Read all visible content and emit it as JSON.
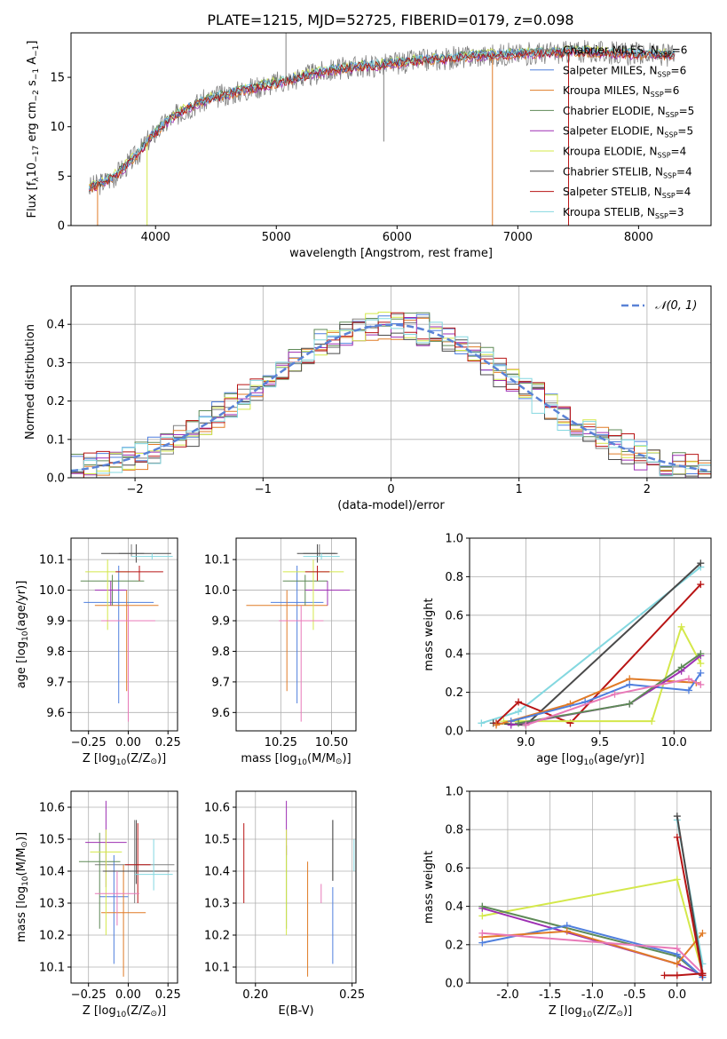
{
  "figure_title": "PLATE=1215, MJD=52725, FIBERID=0179, z=0.098",
  "series": [
    {
      "name": "Chabrier MILES",
      "nssp": "6",
      "color": "#808080"
    },
    {
      "name": "Salpeter MILES",
      "nssp": "6",
      "color": "#4f7fde"
    },
    {
      "name": "Kroupa MILES",
      "nssp": "6",
      "color": "#e07b27"
    },
    {
      "name": "Chabrier ELODIE",
      "nssp": "5",
      "color": "#5e8a57"
    },
    {
      "name": "Salpeter ELODIE",
      "nssp": "5",
      "color": "#9d2fb3"
    },
    {
      "name": "Kroupa ELODIE",
      "nssp": "4",
      "color": "#d4e84a"
    },
    {
      "name": "Chabrier STELIB",
      "nssp": "4",
      "color": "#4a4a4a"
    },
    {
      "name": "Salpeter STELIB",
      "nssp": "4",
      "color": "#b81414"
    },
    {
      "name": "Kroupa STELIB",
      "nssp": "3",
      "color": "#84d8e0"
    }
  ],
  "pink_color": "#e879b8",
  "chart_data": [
    {
      "id": "spectrum",
      "type": "line",
      "title": "PLATE=1215, MJD=52725, FIBERID=0179, z=0.098",
      "xlabel": "wavelength [Angstrom, rest frame]",
      "ylabel_parts": [
        "Flux [f",
        "λ",
        "10",
        "−17",
        " erg cm",
        "−2",
        " s",
        "−1",
        " A",
        "−1",
        "]"
      ],
      "xlim": [
        3300,
        8600
      ],
      "ylim": [
        0,
        19.5
      ],
      "xticks": [
        4000,
        5000,
        6000,
        7000,
        8000
      ],
      "yticks": [
        0,
        5,
        10,
        15
      ],
      "continuum": {
        "x": [
          3450,
          3550,
          3650,
          3750,
          3850,
          3950,
          4050,
          4150,
          4250,
          4350,
          4500,
          4700,
          4900,
          5100,
          5300,
          5500,
          5700,
          5900,
          6100,
          6300,
          6500,
          6700,
          6900,
          7100,
          7300,
          7500,
          7700,
          7900,
          8100,
          8300
        ],
        "y": [
          3.8,
          4.3,
          4.9,
          6.0,
          7.2,
          8.8,
          10.0,
          11.0,
          11.8,
          12.4,
          13.0,
          13.6,
          14.2,
          14.7,
          15.3,
          15.8,
          16.1,
          16.3,
          16.6,
          16.8,
          17.0,
          17.2,
          17.3,
          17.4,
          17.5,
          17.6,
          17.5,
          17.4,
          17.3,
          17.2
        ]
      },
      "spikes": [
        {
          "x": 3520,
          "y0": 0,
          "y1": 4.5,
          "color": "#e07b27"
        },
        {
          "x": 3930,
          "y0": 0,
          "y1": 8.5,
          "color": "#d4e84a"
        },
        {
          "x": 6790,
          "y0": 0,
          "y1": 16.8,
          "color": "#e07b27"
        },
        {
          "x": 7420,
          "y0": 0,
          "y1": 17.5,
          "color": "#b81414"
        },
        {
          "x": 5080,
          "y0": 14.4,
          "y1": 19.5,
          "color": "#808080"
        },
        {
          "x": 5890,
          "y0": 8.5,
          "y1": 16.0,
          "color": "#808080"
        }
      ]
    },
    {
      "id": "residuals",
      "type": "step-histogram",
      "xlabel": "(data-model)/error",
      "ylabel": "Normed distribution",
      "xlim": [
        -2.5,
        2.5
      ],
      "ylim": [
        0,
        0.5
      ],
      "xticks": [
        -2,
        -1,
        0,
        1,
        2
      ],
      "yticks": [
        0.0,
        0.1,
        0.2,
        0.3,
        0.4
      ],
      "bin_width": 0.1,
      "legend_label": "𝒩(0, 1)",
      "legend_color": "#5a82d6",
      "hist_offsets": [
        0.0,
        0.02,
        -0.015,
        0.03,
        -0.025,
        0.015,
        -0.02,
        0.025,
        -0.01
      ]
    },
    {
      "id": "age_vs_Z",
      "type": "errorbar",
      "xlabel_parts": [
        "Z [log",
        "10",
        "(Z/Z",
        "⊙",
        ")]"
      ],
      "ylabel_parts": [
        "age  [log",
        "10",
        "(age/yr)]"
      ],
      "xlim": [
        -0.36,
        0.31
      ],
      "ylim": [
        9.54,
        10.17
      ],
      "xticks": [
        -0.25,
        0.0,
        0.25
      ],
      "yticks": [
        9.6,
        9.7,
        9.8,
        9.9,
        10.0,
        10.1
      ],
      "points": [
        {
          "c": 0,
          "x": 0.02,
          "y": 10.12,
          "xerr": 0.08,
          "yerr": [
            0.01,
            0.03
          ]
        },
        {
          "c": 1,
          "x": -0.06,
          "y": 9.96,
          "xerr": 0.22,
          "yerr": [
            0.33,
            0.12
          ]
        },
        {
          "c": 2,
          "x": -0.01,
          "y": 9.95,
          "xerr": 0.2,
          "yerr": [
            0.28,
            0.05
          ]
        },
        {
          "c": 3,
          "x": -0.1,
          "y": 10.03,
          "xerr": 0.2,
          "yerr": [
            0.08,
            0.02
          ]
        },
        {
          "c": 4,
          "x": -0.11,
          "y": 10.0,
          "xerr": 0.1,
          "yerr": [
            0.05,
            0.03
          ]
        },
        {
          "c": 5,
          "x": -0.13,
          "y": 10.06,
          "xerr": 0.14,
          "yerr": [
            0.19,
            0.04
          ]
        },
        {
          "c": 6,
          "x": 0.05,
          "y": 10.12,
          "xerr": 0.22,
          "yerr": [
            0.03,
            0.03
          ]
        },
        {
          "c": 7,
          "x": 0.07,
          "y": 10.06,
          "xerr": 0.15,
          "yerr": [
            0.03,
            0.02
          ]
        },
        {
          "c": 8,
          "x": 0.15,
          "y": 10.11,
          "xerr": 0.13,
          "yerr": [
            0.01,
            0.01
          ]
        },
        {
          "c": -1,
          "x": 0.0,
          "y": 9.9,
          "xerr": 0.17,
          "yerr": [
            0.33,
            0.05
          ]
        }
      ]
    },
    {
      "id": "age_vs_mass",
      "type": "errorbar",
      "xlabel_parts": [
        "mass [log",
        "10",
        "(M/M",
        "⊙",
        ")]"
      ],
      "xlim": [
        10.03,
        10.62
      ],
      "ylim": [
        9.54,
        10.17
      ],
      "xticks": [
        10.25,
        10.5
      ],
      "yticks": [
        9.6,
        9.7,
        9.8,
        9.9,
        10.0,
        10.1
      ],
      "points": [
        {
          "c": 0,
          "x": 10.44,
          "y": 10.12,
          "xerr": 0.08,
          "yerr": [
            0.01,
            0.03
          ]
        },
        {
          "c": 1,
          "x": 10.33,
          "y": 9.96,
          "xerr": 0.13,
          "yerr": [
            0.33,
            0.12
          ]
        },
        {
          "c": 2,
          "x": 10.28,
          "y": 9.95,
          "xerr": 0.2,
          "yerr": [
            0.28,
            0.05
          ]
        },
        {
          "c": 3,
          "x": 10.37,
          "y": 10.03,
          "xerr": 0.11,
          "yerr": [
            0.08,
            0.02
          ]
        },
        {
          "c": 4,
          "x": 10.48,
          "y": 10.0,
          "xerr": 0.11,
          "yerr": [
            0.05,
            0.03
          ]
        },
        {
          "c": 5,
          "x": 10.41,
          "y": 10.06,
          "xerr": 0.15,
          "yerr": [
            0.19,
            0.04
          ]
        },
        {
          "c": 6,
          "x": 10.43,
          "y": 10.12,
          "xerr": 0.1,
          "yerr": [
            0.03,
            0.03
          ]
        },
        {
          "c": 7,
          "x": 10.43,
          "y": 10.06,
          "xerr": 0.06,
          "yerr": [
            0.03,
            0.02
          ]
        },
        {
          "c": 8,
          "x": 10.45,
          "y": 10.11,
          "xerr": 0.09,
          "yerr": [
            0.01,
            0.01
          ]
        },
        {
          "c": -1,
          "x": 10.35,
          "y": 9.9,
          "xerr": 0.11,
          "yerr": [
            0.33,
            0.05
          ]
        }
      ]
    },
    {
      "id": "weight_vs_age",
      "type": "line",
      "xlabel_parts": [
        "age  [log",
        "10",
        "(age/yr)]"
      ],
      "ylabel": "mass weight",
      "xlim": [
        8.62,
        10.25
      ],
      "ylim": [
        0,
        1.0
      ],
      "xticks": [
        9.0,
        9.5,
        10.0
      ],
      "yticks": [
        0.0,
        0.2,
        0.4,
        0.6,
        0.8,
        1.0
      ],
      "series": [
        {
          "c": 8,
          "x": [
            8.7,
            8.95,
            10.18
          ],
          "y": [
            0.04,
            0.1,
            0.85
          ]
        },
        {
          "c": 6,
          "x": [
            8.78,
            9.0,
            10.18
          ],
          "y": [
            0.04,
            0.03,
            0.87
          ]
        },
        {
          "c": 7,
          "x": [
            8.8,
            8.95,
            9.3,
            10.18
          ],
          "y": [
            0.04,
            0.15,
            0.04,
            0.76
          ]
        },
        {
          "c": 5,
          "x": [
            8.85,
            9.85,
            10.05,
            10.18
          ],
          "y": [
            0.05,
            0.05,
            0.54,
            0.35
          ]
        },
        {
          "c": 2,
          "x": [
            8.8,
            9.3,
            9.7,
            10.15
          ],
          "y": [
            0.03,
            0.14,
            0.27,
            0.25
          ]
        },
        {
          "c": 1,
          "x": [
            8.9,
            9.4,
            9.7,
            10.1,
            10.18
          ],
          "y": [
            0.05,
            0.15,
            0.24,
            0.21,
            0.3
          ]
        },
        {
          "c": 4,
          "x": [
            8.9,
            9.7,
            10.05,
            10.18
          ],
          "y": [
            0.03,
            0.14,
            0.31,
            0.39
          ]
        },
        {
          "c": 3,
          "x": [
            8.95,
            9.7,
            10.05,
            10.18
          ],
          "y": [
            0.04,
            0.14,
            0.33,
            0.4
          ]
        },
        {
          "c": -1,
          "x": [
            9.0,
            9.6,
            10.1,
            10.18
          ],
          "y": [
            0.03,
            0.19,
            0.27,
            0.24
          ]
        }
      ]
    },
    {
      "id": "mass_vs_Z",
      "type": "errorbar",
      "xlabel_parts": [
        "Z [log",
        "10",
        "(Z/Z",
        "⊙",
        ")]"
      ],
      "ylabel_parts": [
        "mass [log",
        "10",
        "(M/M",
        "⊙",
        ")]"
      ],
      "xlim": [
        -0.36,
        0.31
      ],
      "ylim": [
        10.05,
        10.65
      ],
      "xticks": [
        -0.25,
        0.0,
        0.25
      ],
      "yticks": [
        10.1,
        10.2,
        10.3,
        10.4,
        10.5,
        10.6
      ],
      "points": [
        {
          "c": 0,
          "x": 0.04,
          "y": 10.42,
          "xerr": 0.25,
          "yerr": [
            0.12,
            0.14
          ]
        },
        {
          "c": 1,
          "x": -0.09,
          "y": 10.32,
          "xerr": 0.09,
          "yerr": [
            0.21,
            0.13
          ]
        },
        {
          "c": 2,
          "x": -0.03,
          "y": 10.27,
          "xerr": 0.14,
          "yerr": [
            0.2,
            0.15
          ]
        },
        {
          "c": 3,
          "x": -0.18,
          "y": 10.43,
          "xerr": 0.13,
          "yerr": [
            0.21,
            0.09
          ]
        },
        {
          "c": 4,
          "x": -0.14,
          "y": 10.49,
          "xerr": 0.13,
          "yerr": [
            0.14,
            0.13
          ]
        },
        {
          "c": 5,
          "x": -0.14,
          "y": 10.46,
          "xerr": 0.1,
          "yerr": [
            0.26,
            0.07
          ]
        },
        {
          "c": 6,
          "x": 0.05,
          "y": 10.4,
          "xerr": 0.21,
          "yerr": [
            0.04,
            0.16
          ]
        },
        {
          "c": 7,
          "x": 0.06,
          "y": 10.42,
          "xerr": 0.08,
          "yerr": [
            0.12,
            0.13
          ]
        },
        {
          "c": 8,
          "x": 0.16,
          "y": 10.39,
          "xerr": 0.12,
          "yerr": [
            0.05,
            0.11
          ]
        },
        {
          "c": -1,
          "x": -0.07,
          "y": 10.33,
          "xerr": 0.14,
          "yerr": [
            0.1,
            0.07
          ]
        }
      ]
    },
    {
      "id": "mass_vs_ebv",
      "type": "errorbar",
      "xlabel": "E(B-V)",
      "xlim": [
        0.19,
        0.252
      ],
      "ylim": [
        10.05,
        10.65
      ],
      "xticks": [
        0.2,
        0.25
      ],
      "yticks": [
        10.1,
        10.2,
        10.3,
        10.4,
        10.5,
        10.6
      ],
      "points": [
        {
          "c": 0,
          "x": 0.24,
          "y": 10.42,
          "xerr": 0,
          "yerr": [
            0.05,
            0.14
          ]
        },
        {
          "c": 1,
          "x": 0.24,
          "y": 10.32,
          "xerr": 0,
          "yerr": [
            0.21,
            0.03
          ]
        },
        {
          "c": 2,
          "x": 0.227,
          "y": 10.27,
          "xerr": 0,
          "yerr": [
            0.2,
            0.16
          ]
        },
        {
          "c": 3,
          "x": 0.216,
          "y": 10.43,
          "xerr": 0,
          "yerr": [
            0.21,
            0.05
          ]
        },
        {
          "c": 4,
          "x": 0.216,
          "y": 10.49,
          "xerr": 0,
          "yerr": [
            0.04,
            0.13
          ]
        },
        {
          "c": 5,
          "x": 0.216,
          "y": 10.46,
          "xerr": 0,
          "yerr": [
            0.26,
            0.07
          ]
        },
        {
          "c": 6,
          "x": 0.24,
          "y": 10.45,
          "xerr": 0,
          "yerr": [
            0.08,
            0.11
          ]
        },
        {
          "c": 7,
          "x": 0.194,
          "y": 10.43,
          "xerr": 0,
          "yerr": [
            0.13,
            0.12
          ]
        },
        {
          "c": 8,
          "x": 0.251,
          "y": 10.45,
          "xerr": 0,
          "yerr": [
            0.05,
            0.05
          ]
        },
        {
          "c": -1,
          "x": 0.234,
          "y": 10.33,
          "xerr": 0,
          "yerr": [
            0.03,
            0.03
          ]
        }
      ]
    },
    {
      "id": "weight_vs_Z",
      "type": "line",
      "xlabel_parts": [
        "Z [log",
        "10",
        "(Z/Z",
        "⊙",
        ")]"
      ],
      "ylabel": "mass weight",
      "xlim": [
        -2.45,
        0.4
      ],
      "ylim": [
        0,
        1.0
      ],
      "xticks": [
        -2.0,
        -1.5,
        -1.0,
        -0.5,
        0.0
      ],
      "yticks": [
        0.0,
        0.2,
        0.4,
        0.6,
        0.8,
        1.0
      ],
      "series": [
        {
          "c": 5,
          "x": [
            -2.3,
            0.0,
            0.3
          ],
          "y": [
            0.35,
            0.54,
            0.05
          ]
        },
        {
          "c": 4,
          "x": [
            -2.3,
            0.0,
            0.3
          ],
          "y": [
            0.39,
            0.1,
            0.04
          ]
        },
        {
          "c": 3,
          "x": [
            -2.3,
            0.0,
            0.3
          ],
          "y": [
            0.4,
            0.14,
            0.03
          ]
        },
        {
          "c": 1,
          "x": [
            -2.3,
            -1.3,
            0.0,
            0.3
          ],
          "y": [
            0.21,
            0.3,
            0.15,
            0.03
          ]
        },
        {
          "c": 2,
          "x": [
            -2.3,
            -1.3,
            0.0,
            0.3
          ],
          "y": [
            0.24,
            0.27,
            0.1,
            0.26
          ]
        },
        {
          "c": -1,
          "x": [
            -2.3,
            0.0,
            0.3
          ],
          "y": [
            0.26,
            0.18,
            0.05
          ]
        },
        {
          "c": 8,
          "x": [
            0.0,
            0.3
          ],
          "y": [
            0.85,
            0.1
          ]
        },
        {
          "c": 6,
          "x": [
            0.0,
            0.3
          ],
          "y": [
            0.87,
            0.05
          ]
        },
        {
          "c": 7,
          "x": [
            -0.15,
            0.0,
            0.3
          ],
          "y": [
            0.04,
            0.04,
            0.05
          ]
        },
        {
          "c": 7,
          "x": [
            0.0,
            0.3
          ],
          "y": [
            0.76,
            0.04
          ]
        }
      ]
    }
  ]
}
